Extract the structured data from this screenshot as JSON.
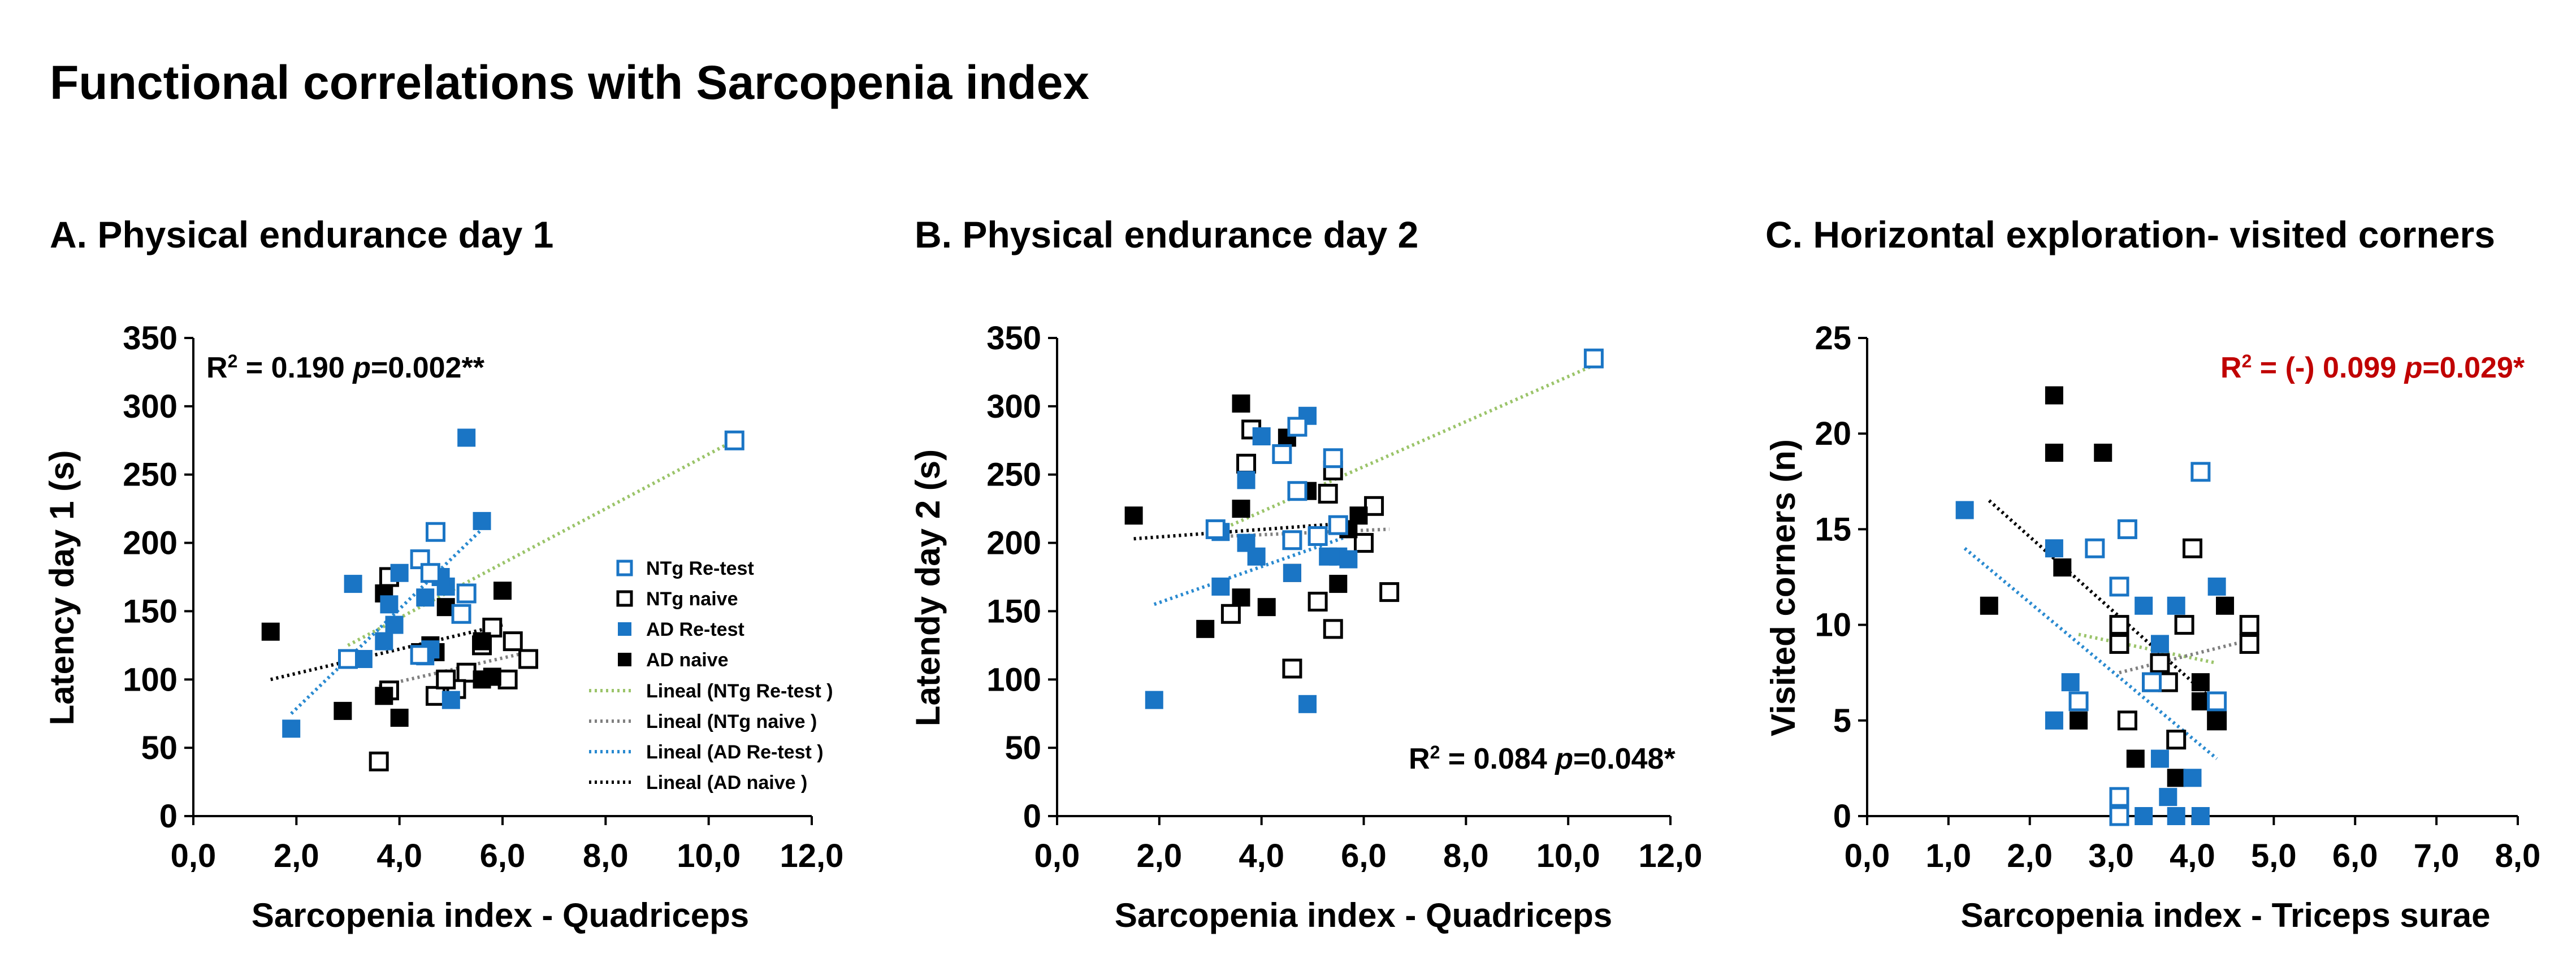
{
  "figure_title": "Functional correlations with Sarcopenia index",
  "legend_items": [
    "NTg Re-test",
    "NTg naive",
    "AD Re-test",
    "AD naive",
    "Lineal (NTg Re-test )",
    "Lineal (NTg naive )",
    "Lineal (AD Re-test )",
    "Lineal (AD naive )"
  ],
  "colors": {
    "ad_blue": "#1a75c5",
    "black": "#000000",
    "trend_ntg_retest": "#9bc46a",
    "trend_ntg_naive": "#808080",
    "trend_ad_retest": "#2a8ad0",
    "trend_ad_naive": "#000000",
    "stat_red": "#c00000"
  },
  "chart_data": [
    {
      "type": "scatter",
      "title": "A. Physical endurance day 1",
      "xlabel": "Sarcopenia index - Quadriceps",
      "ylabel": "Latency day 1 (s)",
      "xlim": [
        0,
        12
      ],
      "ylim": [
        0,
        350
      ],
      "xticks": [
        "0,0",
        "2,0",
        "4,0",
        "6,0",
        "8,0",
        "10,0",
        "12,0"
      ],
      "yticks": [
        "0",
        "50",
        "100",
        "150",
        "200",
        "250",
        "300",
        "350"
      ],
      "stat": {
        "prefix": "R",
        "sup": "2",
        "mid": " = 0.190 ",
        "p": "p",
        "suffix": "=0.002**",
        "color": "#000000",
        "anchor": "top-left"
      },
      "legend": "right-center",
      "series": [
        {
          "name": "NTg Re-test",
          "points": [
            [
              10.5,
              275
            ],
            [
              4.7,
              208
            ],
            [
              4.4,
              188
            ],
            [
              4.6,
              178
            ],
            [
              5.3,
              163
            ],
            [
              5.2,
              148
            ],
            [
              3.0,
              115
            ],
            [
              4.4,
              118
            ]
          ]
        },
        {
          "name": "NTg naive",
          "points": [
            [
              3.8,
              175
            ],
            [
              5.8,
              138
            ],
            [
              6.2,
              128
            ],
            [
              6.5,
              115
            ],
            [
              5.3,
              105
            ],
            [
              5.1,
              93
            ],
            [
              4.7,
              88
            ],
            [
              3.8,
              92
            ],
            [
              6.1,
              100
            ],
            [
              3.6,
              40
            ],
            [
              5.6,
              125
            ],
            [
              4.9,
              100
            ]
          ]
        },
        {
          "name": "AD Re-test",
          "points": [
            [
              5.3,
              277
            ],
            [
              5.6,
              216
            ],
            [
              3.1,
              170
            ],
            [
              4.0,
              178
            ],
            [
              4.5,
              160
            ],
            [
              3.8,
              155
            ],
            [
              3.9,
              140
            ],
            [
              4.9,
              168
            ],
            [
              4.8,
              175
            ],
            [
              3.7,
              128
            ],
            [
              3.3,
              115
            ],
            [
              4.6,
              122
            ],
            [
              4.5,
              117
            ],
            [
              5.0,
              85
            ],
            [
              1.9,
              64
            ]
          ]
        },
        {
          "name": "AD naive",
          "points": [
            [
              1.5,
              135
            ],
            [
              3.7,
              163
            ],
            [
              6.0,
              165
            ],
            [
              4.9,
              153
            ],
            [
              4.6,
              125
            ],
            [
              5.6,
              128
            ],
            [
              4.7,
              120
            ],
            [
              5.6,
              100
            ],
            [
              5.8,
              102
            ],
            [
              3.7,
              88
            ],
            [
              2.9,
              77
            ],
            [
              4.0,
              72
            ],
            [
              4.4,
              120
            ]
          ]
        }
      ],
      "trendlines": [
        {
          "name": "Lineal (NTg Re-test )",
          "from": [
            3.0,
            125
          ],
          "to": [
            10.5,
            275
          ]
        },
        {
          "name": "Lineal (NTg naive )",
          "from": [
            3.6,
            95
          ],
          "to": [
            6.5,
            120
          ]
        },
        {
          "name": "Lineal (AD Re-test )",
          "from": [
            1.9,
            75
          ],
          "to": [
            5.6,
            210
          ]
        },
        {
          "name": "Lineal (AD naive )",
          "from": [
            1.5,
            100
          ],
          "to": [
            6.0,
            140
          ]
        }
      ]
    },
    {
      "type": "scatter",
      "title": "B. Physical endurance day 2",
      "xlabel": "Sarcopenia index - Quadriceps",
      "ylabel": "Latendy day 2 (s)",
      "xlim": [
        0,
        12
      ],
      "ylim": [
        0,
        350
      ],
      "xticks": [
        "0,0",
        "2,0",
        "4,0",
        "6,0",
        "8,0",
        "10,0",
        "12,0"
      ],
      "yticks": [
        "0",
        "50",
        "100",
        "150",
        "200",
        "250",
        "300",
        "350"
      ],
      "stat": {
        "prefix": "R",
        "sup": "2",
        "mid": " = 0.084 ",
        "p": "p",
        "suffix": "=0.048*",
        "color": "#000000",
        "anchor": "bottom-right"
      },
      "series": [
        {
          "name": "NTg Re-test",
          "points": [
            [
              10.5,
              335
            ],
            [
              4.7,
              285
            ],
            [
              5.4,
              262
            ],
            [
              4.4,
              265
            ],
            [
              4.7,
              238
            ],
            [
              5.5,
              213
            ],
            [
              3.1,
              210
            ],
            [
              4.6,
              202
            ],
            [
              5.1,
              205
            ]
          ]
        },
        {
          "name": "NTg naive",
          "points": [
            [
              3.8,
              283
            ],
            [
              3.7,
              258
            ],
            [
              5.4,
              253
            ],
            [
              5.3,
              236
            ],
            [
              6.2,
              227
            ],
            [
              6.0,
              200
            ],
            [
              6.5,
              164
            ],
            [
              5.1,
              157
            ],
            [
              3.4,
              148
            ],
            [
              5.4,
              137
            ],
            [
              4.6,
              108
            ]
          ]
        },
        {
          "name": "AD Re-test",
          "points": [
            [
              4.9,
              293
            ],
            [
              4.0,
              278
            ],
            [
              3.7,
              246
            ],
            [
              3.2,
              208
            ],
            [
              3.7,
              200
            ],
            [
              3.9,
              190
            ],
            [
              5.3,
              190
            ],
            [
              5.5,
              190
            ],
            [
              5.7,
              188
            ],
            [
              3.2,
              168
            ],
            [
              4.6,
              178
            ],
            [
              4.9,
              82
            ],
            [
              1.9,
              85
            ]
          ]
        },
        {
          "name": "AD naive",
          "points": [
            [
              3.6,
              302
            ],
            [
              4.5,
              277
            ],
            [
              4.9,
              238
            ],
            [
              3.6,
              225
            ],
            [
              1.5,
              220
            ],
            [
              5.9,
              220
            ],
            [
              5.7,
              210
            ],
            [
              4.6,
              178
            ],
            [
              5.5,
              170
            ],
            [
              4.1,
              153
            ],
            [
              3.6,
              160
            ],
            [
              2.9,
              137
            ]
          ]
        }
      ],
      "trendlines": [
        {
          "name": "Lineal (NTg Re-test )",
          "from": [
            3.1,
            208
          ],
          "to": [
            10.5,
            330
          ]
        },
        {
          "name": "Lineal (NTg naive )",
          "from": [
            3.4,
            205
          ],
          "to": [
            6.5,
            210
          ]
        },
        {
          "name": "Lineal (AD Re-test )",
          "from": [
            1.9,
            155
          ],
          "to": [
            5.7,
            205
          ]
        },
        {
          "name": "Lineal (AD naive )",
          "from": [
            1.5,
            203
          ],
          "to": [
            5.9,
            215
          ]
        }
      ]
    },
    {
      "type": "scatter",
      "title": "C. Horizontal exploration- visited corners",
      "xlabel": "Sarcopenia index - Triceps surae",
      "ylabel": "Visited corners (n)",
      "xlim": [
        0,
        8
      ],
      "ylim": [
        0,
        25
      ],
      "xticks": [
        "0,0",
        "1,0",
        "2,0",
        "3,0",
        "4,0",
        "5,0",
        "6,0",
        "7,0",
        "8,0"
      ],
      "yticks": [
        "0",
        "5",
        "10",
        "15",
        "20",
        "25"
      ],
      "stat": {
        "prefix": "R",
        "sup": "2",
        "mid": " = (-) 0.099 ",
        "p": "p",
        "suffix": "=0.029*",
        "color": "#c00000",
        "anchor": "top-right"
      },
      "series": [
        {
          "name": "NTg Re-test",
          "points": [
            [
              4.1,
              18
            ],
            [
              3.2,
              15
            ],
            [
              2.8,
              14
            ],
            [
              3.1,
              12
            ],
            [
              2.6,
              6
            ],
            [
              4.3,
              6
            ],
            [
              3.5,
              7
            ],
            [
              3.1,
              1
            ],
            [
              3.1,
              0
            ]
          ]
        },
        {
          "name": "NTg naive",
          "points": [
            [
              4.0,
              14
            ],
            [
              4.7,
              10
            ],
            [
              3.9,
              10
            ],
            [
              4.7,
              9
            ],
            [
              3.1,
              9
            ],
            [
              3.1,
              10
            ],
            [
              3.6,
              8
            ],
            [
              3.5,
              7
            ],
            [
              3.7,
              7
            ],
            [
              3.2,
              5
            ],
            [
              3.8,
              4
            ],
            [
              4.3,
              5
            ]
          ]
        },
        {
          "name": "AD Re-test",
          "points": [
            [
              1.2,
              16
            ],
            [
              2.3,
              14
            ],
            [
              2.5,
              7
            ],
            [
              2.3,
              5
            ],
            [
              3.8,
              11
            ],
            [
              3.4,
              11
            ],
            [
              4.3,
              12
            ],
            [
              3.6,
              9
            ],
            [
              3.6,
              3
            ],
            [
              4.0,
              2
            ],
            [
              3.7,
              1
            ],
            [
              3.4,
              0
            ],
            [
              3.8,
              0
            ],
            [
              4.1,
              0
            ]
          ]
        },
        {
          "name": "AD naive",
          "points": [
            [
              2.3,
              22
            ],
            [
              2.3,
              19
            ],
            [
              2.9,
              19
            ],
            [
              2.4,
              13
            ],
            [
              1.5,
              11
            ],
            [
              4.4,
              11
            ],
            [
              4.1,
              7
            ],
            [
              4.2,
              6
            ],
            [
              4.1,
              6
            ],
            [
              2.6,
              5
            ],
            [
              4.3,
              5
            ],
            [
              3.3,
              3
            ],
            [
              3.8,
              2
            ]
          ]
        }
      ],
      "trendlines": [
        {
          "name": "Lineal (NTg Re-test )",
          "from": [
            2.6,
            9.5
          ],
          "to": [
            4.3,
            8
          ]
        },
        {
          "name": "Lineal (NTg naive )",
          "from": [
            3.1,
            7.5
          ],
          "to": [
            4.7,
            9.2
          ]
        },
        {
          "name": "Lineal (AD Re-test )",
          "from": [
            1.2,
            14
          ],
          "to": [
            4.3,
            3
          ]
        },
        {
          "name": "Lineal (AD naive )",
          "from": [
            1.5,
            16.5
          ],
          "to": [
            4.4,
            5.5
          ]
        }
      ]
    }
  ]
}
